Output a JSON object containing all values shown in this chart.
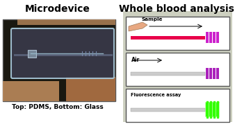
{
  "title_left": "Microdevice",
  "title_right": "Whole blood analysis",
  "caption_left": "Top: PDMS, Bottom: Glass",
  "right_bg": "#cdd0c0",
  "panel1_label": "Sample",
  "panel2_label": "Air",
  "panel3_label": "Fluorescence assay",
  "channel_pink": "#e8004a",
  "channel_purple": "#cc22cc",
  "channel_purple2": "#aa22bb",
  "channel_gray": "#cccccc",
  "green_color": "#33ff00",
  "finger_color": "#e8a882",
  "photo_bg": "#1a1810",
  "device_color": "#3a3a4a",
  "device_edge": "#aaccdd"
}
